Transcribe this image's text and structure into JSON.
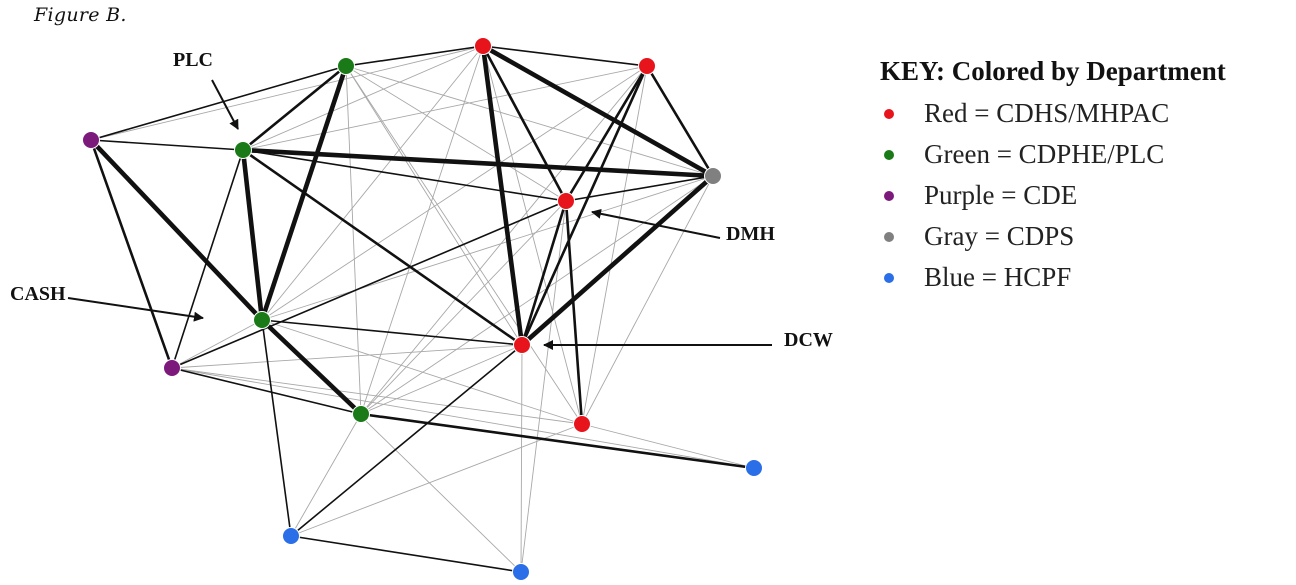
{
  "figure": {
    "title": "Figure B."
  },
  "colors": {
    "red": "#e8141c",
    "green": "#1a7a18",
    "purple": "#7c1a7c",
    "gray": "#808080",
    "blue": "#2a6ee8"
  },
  "network": {
    "nodes": [
      {
        "id": "g1",
        "color": "green"
      },
      {
        "id": "r1",
        "color": "red"
      },
      {
        "id": "r2",
        "color": "red"
      },
      {
        "id": "p1",
        "color": "purple"
      },
      {
        "id": "g2",
        "color": "green"
      },
      {
        "id": "gy",
        "color": "gray"
      },
      {
        "id": "r3",
        "color": "red"
      },
      {
        "id": "g3",
        "color": "green"
      },
      {
        "id": "r4",
        "color": "red"
      },
      {
        "id": "p2",
        "color": "purple"
      },
      {
        "id": "g4",
        "color": "green"
      },
      {
        "id": "r5",
        "color": "red"
      },
      {
        "id": "b1",
        "color": "blue"
      },
      {
        "id": "b2",
        "color": "blue"
      },
      {
        "id": "b3",
        "color": "blue"
      }
    ],
    "edges": [
      [
        "p1",
        "g3",
        "heavy"
      ],
      [
        "g2",
        "g3",
        "heavy"
      ],
      [
        "g1",
        "g3",
        "heavy"
      ],
      [
        "r1",
        "gy",
        "heavy"
      ],
      [
        "g3",
        "g4",
        "heavy"
      ],
      [
        "r1",
        "r4",
        "heavy"
      ],
      [
        "r4",
        "gy",
        "heavy"
      ],
      [
        "g2",
        "gy",
        "heavy"
      ],
      [
        "g4",
        "b1",
        "medium"
      ],
      [
        "g1",
        "g2",
        "medium"
      ],
      [
        "r2",
        "r4",
        "medium"
      ],
      [
        "r3",
        "r4",
        "medium"
      ],
      [
        "r3",
        "r5",
        "medium"
      ],
      [
        "r1",
        "r3",
        "medium"
      ],
      [
        "r2",
        "r3",
        "medium"
      ],
      [
        "p1",
        "p2",
        "medium"
      ],
      [
        "g2",
        "r4",
        "medium"
      ],
      [
        "r2",
        "gy",
        "medium"
      ],
      [
        "p1",
        "g2",
        "thin"
      ],
      [
        "r1",
        "r2",
        "thin"
      ],
      [
        "p1",
        "g1",
        "thin"
      ],
      [
        "g1",
        "r1",
        "thin"
      ],
      [
        "g2",
        "p2",
        "thin"
      ],
      [
        "p2",
        "g4",
        "thin"
      ],
      [
        "p2",
        "r3",
        "thin"
      ],
      [
        "g3",
        "r4",
        "thin"
      ],
      [
        "r4",
        "b2",
        "thin"
      ],
      [
        "b2",
        "b3",
        "thin"
      ],
      [
        "g3",
        "b2",
        "thin"
      ],
      [
        "r3",
        "gy",
        "thin"
      ],
      [
        "g2",
        "r3",
        "thin"
      ]
    ],
    "light_edges": [
      [
        "g1",
        "r3"
      ],
      [
        "g1",
        "r4"
      ],
      [
        "g1",
        "g4"
      ],
      [
        "g1",
        "r5"
      ],
      [
        "r1",
        "g3"
      ],
      [
        "r1",
        "g4"
      ],
      [
        "r1",
        "r5"
      ],
      [
        "r2",
        "g3"
      ],
      [
        "r2",
        "g4"
      ],
      [
        "r2",
        "r5"
      ],
      [
        "r2",
        "g2"
      ],
      [
        "gy",
        "g3"
      ],
      [
        "gy",
        "g4"
      ],
      [
        "gy",
        "r5"
      ],
      [
        "g3",
        "r5"
      ],
      [
        "g3",
        "p2"
      ],
      [
        "g4",
        "r4"
      ],
      [
        "g4",
        "b2"
      ],
      [
        "r4",
        "b3"
      ],
      [
        "r4",
        "p2"
      ],
      [
        "r5",
        "b2"
      ],
      [
        "r5",
        "b1"
      ],
      [
        "r3",
        "b3"
      ],
      [
        "r3",
        "g4"
      ],
      [
        "p2",
        "r5"
      ],
      [
        "p2",
        "b1"
      ],
      [
        "g3",
        "b3"
      ],
      [
        "r1",
        "p1"
      ],
      [
        "g2",
        "r1"
      ],
      [
        "g1",
        "gy"
      ]
    ],
    "labels": {
      "plc": "PLC",
      "cash": "CASH",
      "dmh": "DMH",
      "dcw": "DCW"
    }
  },
  "key": {
    "title": "KEY: Colored by Department",
    "items": [
      {
        "color": "red",
        "label": "Red = CDHS/MHPAC"
      },
      {
        "color": "green",
        "label": "Green = CDPHE/PLC"
      },
      {
        "color": "purple",
        "label": "Purple = CDE"
      },
      {
        "color": "gray",
        "label": "Gray = CDPS"
      },
      {
        "color": "blue",
        "label": "Blue = HCPF"
      }
    ]
  }
}
